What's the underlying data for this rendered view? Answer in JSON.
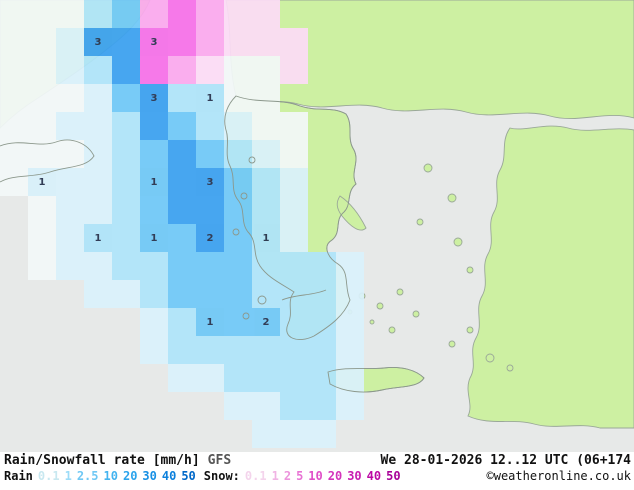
{
  "legend": {
    "title": "Rain/Snowfall rate [mm/h]",
    "model": "GFS",
    "datetime": "We 28-01-2026 12..12 UTC (06+174",
    "rain_label": "Rain",
    "snow_label": "Snow:",
    "rain_values": [
      {
        "v": "0.1",
        "color": "#c8e8f0"
      },
      {
        "v": "1",
        "color": "#9cdcf8"
      },
      {
        "v": "2.5",
        "color": "#70c8f4"
      },
      {
        "v": "10",
        "color": "#44b4f0"
      },
      {
        "v": "20",
        "color": "#2ca4ec"
      },
      {
        "v": "30",
        "color": "#1890e4"
      },
      {
        "v": "40",
        "color": "#0c80dc"
      },
      {
        "v": "50",
        "color": "#0068c8"
      }
    ],
    "snow_values": [
      {
        "v": "0.1",
        "color": "#f4d4ec"
      },
      {
        "v": "1",
        "color": "#f0b4e4"
      },
      {
        "v": "2",
        "color": "#ec94dc"
      },
      {
        "v": "5",
        "color": "#e874d4"
      },
      {
        "v": "10",
        "color": "#e050c8"
      },
      {
        "v": "20",
        "color": "#d434bc"
      },
      {
        "v": "30",
        "color": "#c81cb0"
      },
      {
        "v": "40",
        "color": "#bc08a4"
      },
      {
        "v": "50",
        "color": "#a80098"
      }
    ],
    "copyright": "©weatheronline.co.uk"
  },
  "map": {
    "sea_color": "#e7e9e8",
    "land_color": "#cdf0a2",
    "cell_size": 28,
    "palette": {
      "w": "#f2f7f8",
      "b1": "#d9f1fb",
      "b2": "#aee4fa",
      "b3": "#6fc8f7",
      "b4": "#3aa0f0",
      "p1": "#fcdcf5",
      "p2": "#fba9ee",
      "p3": "#f670e8"
    },
    "cells": [
      [
        0,
        0,
        "w"
      ],
      [
        1,
        0,
        "w"
      ],
      [
        2,
        0,
        "w"
      ],
      [
        3,
        0,
        "b2"
      ],
      [
        4,
        0,
        "b3"
      ],
      [
        5,
        0,
        "p2"
      ],
      [
        6,
        0,
        "p3"
      ],
      [
        7,
        0,
        "p2"
      ],
      [
        8,
        0,
        "p1"
      ],
      [
        9,
        0,
        "p1"
      ],
      [
        0,
        1,
        "w"
      ],
      [
        1,
        1,
        "w"
      ],
      [
        2,
        1,
        "b1"
      ],
      [
        3,
        1,
        "b4",
        "3"
      ],
      [
        4,
        1,
        "b4"
      ],
      [
        5,
        1,
        "p3",
        "3"
      ],
      [
        6,
        1,
        "p3"
      ],
      [
        7,
        1,
        "p2"
      ],
      [
        8,
        1,
        "p1"
      ],
      [
        9,
        1,
        "p1"
      ],
      [
        10,
        1,
        "p1"
      ],
      [
        0,
        2,
        "w"
      ],
      [
        1,
        2,
        "w"
      ],
      [
        2,
        2,
        "b1"
      ],
      [
        3,
        2,
        "b2"
      ],
      [
        4,
        2,
        "b4"
      ],
      [
        5,
        2,
        "p3"
      ],
      [
        6,
        2,
        "p2"
      ],
      [
        7,
        2,
        "p1"
      ],
      [
        8,
        2,
        "w"
      ],
      [
        9,
        2,
        "w"
      ],
      [
        10,
        2,
        "p1"
      ],
      [
        0,
        3,
        "w"
      ],
      [
        1,
        3,
        "w"
      ],
      [
        2,
        3,
        "w"
      ],
      [
        3,
        3,
        "b1"
      ],
      [
        4,
        3,
        "b3"
      ],
      [
        5,
        3,
        "b4",
        "3"
      ],
      [
        6,
        3,
        "b2"
      ],
      [
        7,
        3,
        "b2",
        "1"
      ],
      [
        8,
        3,
        "w"
      ],
      [
        9,
        3,
        "w"
      ],
      [
        0,
        4,
        "w"
      ],
      [
        1,
        4,
        "w"
      ],
      [
        2,
        4,
        "b1"
      ],
      [
        3,
        4,
        "b1"
      ],
      [
        4,
        4,
        "b2"
      ],
      [
        5,
        4,
        "b4"
      ],
      [
        6,
        4,
        "b3"
      ],
      [
        7,
        4,
        "b2"
      ],
      [
        8,
        4,
        "b1"
      ],
      [
        9,
        4,
        "w"
      ],
      [
        10,
        4,
        "w"
      ],
      [
        0,
        5,
        "w"
      ],
      [
        1,
        5,
        "w"
      ],
      [
        2,
        5,
        "w"
      ],
      [
        3,
        5,
        "b1"
      ],
      [
        4,
        5,
        "b2"
      ],
      [
        5,
        5,
        "b3"
      ],
      [
        6,
        5,
        "b4"
      ],
      [
        7,
        5,
        "b3"
      ],
      [
        8,
        5,
        "b2"
      ],
      [
        9,
        5,
        "b1"
      ],
      [
        10,
        5,
        "w"
      ],
      [
        0,
        6,
        "w"
      ],
      [
        1,
        6,
        "b1",
        "1"
      ],
      [
        2,
        6,
        "b1"
      ],
      [
        3,
        6,
        "b1"
      ],
      [
        4,
        6,
        "b2"
      ],
      [
        5,
        6,
        "b3",
        "1"
      ],
      [
        6,
        6,
        "b4"
      ],
      [
        7,
        6,
        "b4",
        "3"
      ],
      [
        8,
        6,
        "b3"
      ],
      [
        9,
        6,
        "b2"
      ],
      [
        10,
        6,
        "b1"
      ],
      [
        1,
        7,
        "w"
      ],
      [
        2,
        7,
        "b1"
      ],
      [
        3,
        7,
        "b1"
      ],
      [
        4,
        7,
        "b2"
      ],
      [
        5,
        7,
        "b3"
      ],
      [
        6,
        7,
        "b4"
      ],
      [
        7,
        7,
        "b4"
      ],
      [
        8,
        7,
        "b3"
      ],
      [
        9,
        7,
        "b2"
      ],
      [
        10,
        7,
        "b1"
      ],
      [
        1,
        8,
        "w"
      ],
      [
        2,
        8,
        "b1"
      ],
      [
        3,
        8,
        "b2",
        "1"
      ],
      [
        4,
        8,
        "b2"
      ],
      [
        5,
        8,
        "b3",
        "1"
      ],
      [
        6,
        8,
        "b3"
      ],
      [
        7,
        8,
        "b4",
        "2"
      ],
      [
        8,
        8,
        "b3"
      ],
      [
        9,
        8,
        "b2",
        "1"
      ],
      [
        10,
        8,
        "b1"
      ],
      [
        1,
        9,
        "w"
      ],
      [
        2,
        9,
        "b1"
      ],
      [
        3,
        9,
        "b1"
      ],
      [
        4,
        9,
        "b2"
      ],
      [
        5,
        9,
        "b2"
      ],
      [
        6,
        9,
        "b3"
      ],
      [
        7,
        9,
        "b3"
      ],
      [
        8,
        9,
        "b3"
      ],
      [
        9,
        9,
        "b2"
      ],
      [
        10,
        9,
        "b2"
      ],
      [
        11,
        9,
        "b2"
      ],
      [
        12,
        9,
        "b1"
      ],
      [
        3,
        10,
        "b1"
      ],
      [
        4,
        10,
        "b1"
      ],
      [
        5,
        10,
        "b2"
      ],
      [
        6,
        10,
        "b3"
      ],
      [
        7,
        10,
        "b3"
      ],
      [
        8,
        10,
        "b3"
      ],
      [
        9,
        10,
        "b2"
      ],
      [
        10,
        10,
        "b2"
      ],
      [
        11,
        10,
        "b2"
      ],
      [
        12,
        10,
        "b1"
      ],
      [
        5,
        11,
        "b1"
      ],
      [
        6,
        11,
        "b2"
      ],
      [
        7,
        11,
        "b3",
        "1"
      ],
      [
        8,
        11,
        "b3"
      ],
      [
        9,
        11,
        "b3",
        "2"
      ],
      [
        10,
        11,
        "b2"
      ],
      [
        11,
        11,
        "b2"
      ],
      [
        12,
        11,
        "b1"
      ],
      [
        5,
        12,
        "b1"
      ],
      [
        6,
        12,
        "b2"
      ],
      [
        7,
        12,
        "b2"
      ],
      [
        8,
        12,
        "b2"
      ],
      [
        9,
        12,
        "b2"
      ],
      [
        10,
        12,
        "b2"
      ],
      [
        11,
        12,
        "b2"
      ],
      [
        12,
        12,
        "b1"
      ],
      [
        6,
        13,
        "b1"
      ],
      [
        7,
        13,
        "b1"
      ],
      [
        8,
        13,
        "b2"
      ],
      [
        9,
        13,
        "b2"
      ],
      [
        10,
        13,
        "b2"
      ],
      [
        11,
        13,
        "b2"
      ],
      [
        12,
        13,
        "b1"
      ],
      [
        8,
        14,
        "b1"
      ],
      [
        9,
        14,
        "b1"
      ],
      [
        10,
        14,
        "b2"
      ],
      [
        11,
        14,
        "b2"
      ],
      [
        12,
        14,
        "b1"
      ],
      [
        9,
        15,
        "b1"
      ],
      [
        10,
        15,
        "b1"
      ],
      [
        11,
        15,
        "b1"
      ]
    ]
  }
}
